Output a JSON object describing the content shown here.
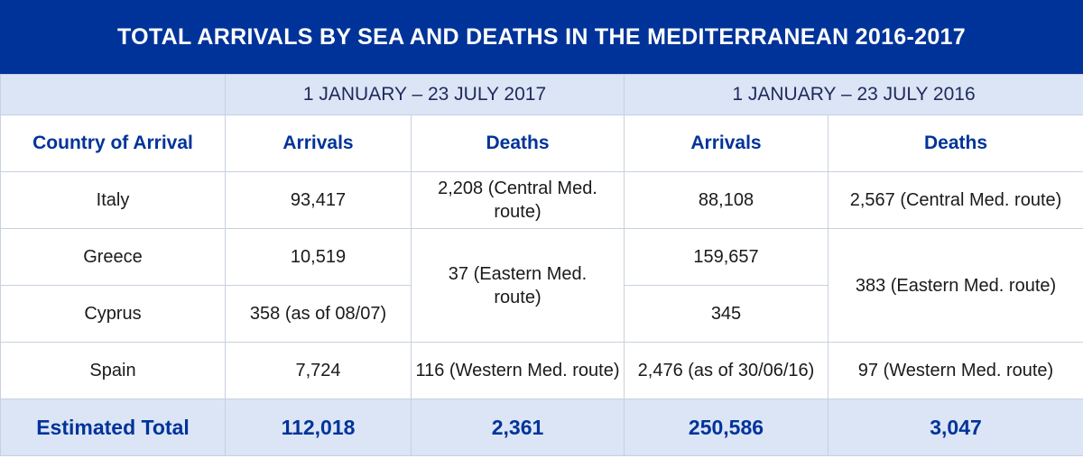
{
  "title": "TOTAL ARRIVALS BY SEA AND DEATHS IN THE MEDITERRANEAN 2016-2017",
  "periods": [
    "1 JANUARY –  23 JULY 2017",
    "1 JANUARY – 23 JULY 2016"
  ],
  "headers": {
    "country": "Country of Arrival",
    "arrivals_2017": "Arrivals",
    "deaths_2017": "Deaths",
    "arrivals_2016": "Arrivals",
    "deaths_2016": "Deaths"
  },
  "rows": {
    "italy": {
      "country": "Italy",
      "arrivals_2017": "93,417",
      "arrivals_2016": "88,108"
    },
    "greece": {
      "country": "Greece",
      "arrivals_2017": "10,519",
      "arrivals_2016": "159,657"
    },
    "cyprus": {
      "country": "Cyprus",
      "arrivals_2017": "358 (as of 08/07)",
      "arrivals_2016": "345"
    },
    "spain": {
      "country": "Spain",
      "arrivals_2017": "7,724",
      "arrivals_2016": "2,476 (as of 30/06/16)"
    }
  },
  "deaths_2017": {
    "central": "2,208 (Central Med. route)",
    "eastern": "37 (Eastern Med. route)",
    "western": "116 (Western Med. route)"
  },
  "deaths_2016": {
    "central": "2,567 (Central Med. route)",
    "eastern": "383 (Eastern Med. route)",
    "western": "97 (Western Med. route)"
  },
  "total": {
    "label": "Estimated Total",
    "arrivals_2017": "112,018",
    "deaths_2017": "2,361",
    "arrivals_2016": "250,586",
    "deaths_2016": "3,047"
  },
  "colors": {
    "title_bg": "#003399",
    "band_bg": "#dbe5f6",
    "header_text": "#003399"
  }
}
